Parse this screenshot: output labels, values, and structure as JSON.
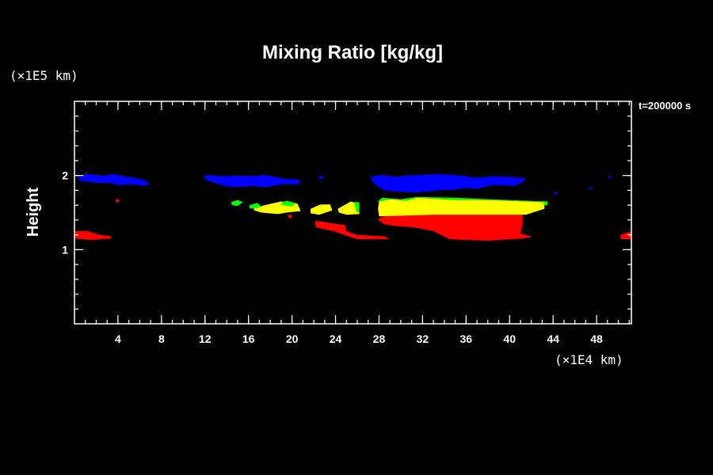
{
  "chart_data": {
    "type": "heatmap",
    "title": "Mixing Ratio [kg/kg]",
    "time_label": "t=200000 s",
    "ylabel": "Height",
    "y_unit": "(×1E5 km)",
    "x_unit": "(×1E4 km)",
    "xlim": [
      0,
      51.2
    ],
    "ylim": [
      0,
      3
    ],
    "x_ticks": [
      4,
      8,
      12,
      16,
      20,
      24,
      28,
      32,
      36,
      40,
      44,
      48
    ],
    "y_ticks": [
      1,
      2
    ],
    "x_minor_step": 1,
    "y_minor_step": 0.2,
    "colors": {
      "background": "#000000",
      "frame": "#ffffff",
      "blue": "#0000ff",
      "yellow": "#ffff00",
      "green": "#00ff00",
      "red": "#ff0000"
    },
    "regions": [
      {
        "color": "red",
        "points": [
          [
            0,
            1.15
          ],
          [
            0,
            1.25
          ],
          [
            1.2,
            1.25
          ],
          [
            2.3,
            1.2
          ],
          [
            3.4,
            1.18
          ],
          [
            3.4,
            1.15
          ],
          [
            1.5,
            1.13
          ]
        ]
      },
      {
        "color": "red",
        "points": [
          [
            50.2,
            1.2
          ],
          [
            51,
            1.24
          ],
          [
            51.2,
            1.24
          ],
          [
            51.2,
            1.14
          ],
          [
            50.2,
            1.14
          ]
        ]
      },
      {
        "color": "red",
        "points": [
          [
            3.8,
            1.68
          ],
          [
            4.1,
            1.68
          ],
          [
            4.1,
            1.64
          ],
          [
            3.8,
            1.64
          ]
        ]
      },
      {
        "color": "red",
        "points": [
          [
            22.1,
            1.39
          ],
          [
            24.9,
            1.33
          ],
          [
            25,
            1.25
          ],
          [
            26,
            1.2
          ],
          [
            28.5,
            1.18
          ],
          [
            29,
            1.14
          ],
          [
            26,
            1.14
          ],
          [
            24.8,
            1.2
          ],
          [
            23.8,
            1.25
          ],
          [
            22.2,
            1.3
          ]
        ]
      },
      {
        "color": "red",
        "points": [
          [
            28.1,
            1.43
          ],
          [
            29,
            1.47
          ],
          [
            31.5,
            1.47
          ],
          [
            41.2,
            1.47
          ],
          [
            41.2,
            1.34
          ],
          [
            41,
            1.22
          ],
          [
            42.1,
            1.17
          ],
          [
            41.2,
            1.15
          ],
          [
            38,
            1.12
          ],
          [
            34.5,
            1.14
          ],
          [
            33,
            1.25
          ],
          [
            31.2,
            1.3
          ],
          [
            29.5,
            1.32
          ],
          [
            28.5,
            1.34
          ],
          [
            27.9,
            1.4
          ]
        ]
      },
      {
        "color": "red",
        "points": [
          [
            19.6,
            1.47
          ],
          [
            20,
            1.47
          ],
          [
            20,
            1.43
          ],
          [
            19.7,
            1.43
          ]
        ]
      },
      {
        "color": "yellow",
        "points": [
          [
            28,
            1.65
          ],
          [
            29,
            1.68
          ],
          [
            30.5,
            1.66
          ],
          [
            31.5,
            1.7
          ],
          [
            35,
            1.67
          ],
          [
            38,
            1.67
          ],
          [
            43.2,
            1.64
          ],
          [
            43.2,
            1.55
          ],
          [
            41.5,
            1.47
          ],
          [
            33,
            1.47
          ],
          [
            28,
            1.45
          ],
          [
            27.9,
            1.55
          ]
        ]
      },
      {
        "color": "yellow",
        "points": [
          [
            16.5,
            1.56
          ],
          [
            17.5,
            1.6
          ],
          [
            19,
            1.65
          ],
          [
            20.5,
            1.62
          ],
          [
            20.8,
            1.52
          ],
          [
            19.5,
            1.5
          ],
          [
            18.7,
            1.48
          ],
          [
            17.2,
            1.5
          ],
          [
            16.5,
            1.53
          ]
        ]
      },
      {
        "color": "yellow",
        "points": [
          [
            21.7,
            1.55
          ],
          [
            22.6,
            1.61
          ],
          [
            23.5,
            1.61
          ],
          [
            23.7,
            1.53
          ],
          [
            22.5,
            1.47
          ],
          [
            21.7,
            1.49
          ]
        ]
      },
      {
        "color": "yellow",
        "points": [
          [
            24.2,
            1.55
          ],
          [
            25.4,
            1.65
          ],
          [
            26.1,
            1.62
          ],
          [
            26.2,
            1.48
          ],
          [
            25,
            1.47
          ],
          [
            24.3,
            1.5
          ]
        ]
      },
      {
        "color": "green",
        "points": [
          [
            14.4,
            1.64
          ],
          [
            15,
            1.67
          ],
          [
            15.5,
            1.64
          ],
          [
            15,
            1.59
          ],
          [
            14.5,
            1.6
          ]
        ]
      },
      {
        "color": "green",
        "points": [
          [
            16.1,
            1.6
          ],
          [
            16.8,
            1.63
          ],
          [
            17.2,
            1.58
          ],
          [
            16.5,
            1.55
          ],
          [
            16.1,
            1.56
          ]
        ]
      },
      {
        "color": "green",
        "points": [
          [
            18.9,
            1.62
          ],
          [
            19.5,
            1.66
          ],
          [
            20.3,
            1.63
          ],
          [
            20,
            1.58
          ],
          [
            19.2,
            1.6
          ]
        ]
      },
      {
        "color": "green",
        "points": [
          [
            25.7,
            1.64
          ],
          [
            26.2,
            1.64
          ],
          [
            26.2,
            1.5
          ],
          [
            25.9,
            1.52
          ]
        ]
      },
      {
        "color": "green",
        "points": [
          [
            27.8,
            1.64
          ],
          [
            28.3,
            1.7
          ],
          [
            30,
            1.68
          ],
          [
            31.5,
            1.71
          ],
          [
            35,
            1.7
          ],
          [
            38,
            1.68
          ],
          [
            43.5,
            1.65
          ],
          [
            43.5,
            1.6
          ],
          [
            43.1,
            1.6
          ],
          [
            43.2,
            1.64
          ],
          [
            38,
            1.67
          ],
          [
            35,
            1.67
          ],
          [
            31.5,
            1.7
          ],
          [
            30.5,
            1.66
          ],
          [
            29,
            1.68
          ],
          [
            28,
            1.65
          ]
        ]
      },
      {
        "color": "blue",
        "points": [
          [
            0.3,
            1.98
          ],
          [
            1,
            2.02
          ],
          [
            2.8,
            2
          ],
          [
            3.4,
            2.02
          ],
          [
            5,
            1.98
          ],
          [
            6.1,
            1.95
          ],
          [
            6.6,
            1.93
          ],
          [
            6.9,
            1.87
          ],
          [
            6.3,
            1.86
          ],
          [
            5.2,
            1.88
          ],
          [
            4,
            1.87
          ],
          [
            3.2,
            1.9
          ],
          [
            2,
            1.9
          ],
          [
            1.1,
            1.92
          ],
          [
            0.5,
            1.93
          ]
        ]
      },
      {
        "color": "blue",
        "points": [
          [
            11.8,
            1.99
          ],
          [
            12.4,
            2.01
          ],
          [
            13.5,
            1.99
          ],
          [
            15,
            2
          ],
          [
            16.5,
            1.99
          ],
          [
            17.5,
            2.01
          ],
          [
            19.5,
            1.95
          ],
          [
            20.2,
            1.95
          ],
          [
            20.8,
            1.93
          ],
          [
            20.6,
            1.88
          ],
          [
            19,
            1.88
          ],
          [
            17.5,
            1.84
          ],
          [
            16.2,
            1.86
          ],
          [
            15,
            1.84
          ],
          [
            13.8,
            1.86
          ],
          [
            12.8,
            1.9
          ],
          [
            12.1,
            1.94
          ]
        ]
      },
      {
        "color": "blue",
        "points": [
          [
            22.4,
            1.99
          ],
          [
            22.9,
            1.99
          ],
          [
            22.9,
            1.95
          ],
          [
            22.5,
            1.96
          ]
        ]
      },
      {
        "color": "blue",
        "points": [
          [
            27.2,
            1.98
          ],
          [
            28.2,
            2.01
          ],
          [
            29.5,
            1.98
          ],
          [
            30.5,
            2
          ],
          [
            32,
            2.01
          ],
          [
            33.5,
            2.02
          ],
          [
            35.5,
            2
          ],
          [
            37,
            1.97
          ],
          [
            38.5,
            1.99
          ],
          [
            40.2,
            1.98
          ],
          [
            41.5,
            1.96
          ],
          [
            41.2,
            1.91
          ],
          [
            40.5,
            1.86
          ],
          [
            38.5,
            1.87
          ],
          [
            37,
            1.82
          ],
          [
            36,
            1.83
          ],
          [
            35,
            1.81
          ],
          [
            33.5,
            1.8
          ],
          [
            31.5,
            1.77
          ],
          [
            30,
            1.78
          ],
          [
            28.5,
            1.8
          ],
          [
            27.8,
            1.86
          ],
          [
            27.4,
            1.92
          ]
        ]
      },
      {
        "color": "blue",
        "points": [
          [
            44.1,
            1.78
          ],
          [
            44.4,
            1.78
          ],
          [
            44.4,
            1.75
          ],
          [
            44.1,
            1.75
          ]
        ]
      },
      {
        "color": "blue",
        "points": [
          [
            47.3,
            1.84
          ],
          [
            47.6,
            1.84
          ],
          [
            47.6,
            1.81
          ],
          [
            47.3,
            1.81
          ]
        ]
      },
      {
        "color": "blue",
        "points": [
          [
            49,
            1.99
          ],
          [
            49.4,
            1.99
          ],
          [
            49.4,
            1.97
          ],
          [
            49,
            1.97
          ]
        ]
      }
    ]
  }
}
